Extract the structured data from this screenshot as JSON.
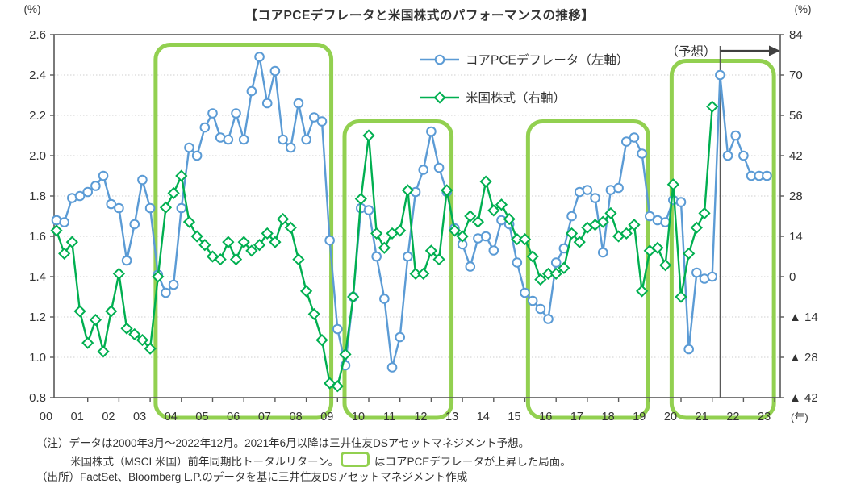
{
  "title": "【コアPCEデフレータと米国株式のパフォーマンスの推移】",
  "legend": [
    {
      "label": "コアPCEデフレータ（左軸）",
      "color": "#5B9BD5",
      "marker": "circle"
    },
    {
      "label": "米国株式（右軸）",
      "color": "#00AF50",
      "marker": "diamond"
    }
  ],
  "forecast_label": "（予想）",
  "left_axis": {
    "unit": "(%)",
    "labels": [
      "2.6",
      "2.4",
      "2.2",
      "2.0",
      "1.8",
      "1.6",
      "1.4",
      "1.2",
      "1.0",
      "0.8"
    ],
    "max": 2.6,
    "min": 0.8
  },
  "right_axis": {
    "unit": "(%)",
    "labels": [
      "84",
      "70",
      "56",
      "42",
      "28",
      "14",
      "0",
      "▲ 14",
      "▲ 28",
      "▲ 42"
    ],
    "max": 84,
    "min": -42
  },
  "x_axis": {
    "labels": [
      "00",
      "01",
      "02",
      "03",
      "04",
      "05",
      "06",
      "07",
      "08",
      "09",
      "10",
      "11",
      "12",
      "13",
      "14",
      "15",
      "16",
      "17",
      "18",
      "19",
      "20",
      "21",
      "22",
      "23"
    ],
    "unit_label": "(年)"
  },
  "chart_data": {
    "type": "line",
    "frequency": "quarterly",
    "start": "2000Q1",
    "end": "2022Q4",
    "series": [
      {
        "name": "コアPCEデフレータ（左軸）",
        "axis": "left",
        "color": "#5B9BD5",
        "marker": "circle",
        "values": [
          1.68,
          1.67,
          1.79,
          1.8,
          1.82,
          1.85,
          1.9,
          1.76,
          1.74,
          1.48,
          1.66,
          1.88,
          1.74,
          1.41,
          1.32,
          1.36,
          1.74,
          2.04,
          2.0,
          2.14,
          2.21,
          2.09,
          2.08,
          2.21,
          2.08,
          2.32,
          2.49,
          2.26,
          2.42,
          2.08,
          2.04,
          2.26,
          2.08,
          2.19,
          2.17,
          1.58,
          1.14,
          0.96,
          1.3,
          1.74,
          1.73,
          1.5,
          1.29,
          0.95,
          1.1,
          1.5,
          1.82,
          1.93,
          2.12,
          1.94,
          1.82,
          1.64,
          1.56,
          1.45,
          1.59,
          1.6,
          1.53,
          1.68,
          1.66,
          1.47,
          1.32,
          1.28,
          1.24,
          1.19,
          1.47,
          1.54,
          1.7,
          1.82,
          1.83,
          1.79,
          1.52,
          1.83,
          1.84,
          2.07,
          2.09,
          2.01,
          1.7,
          1.68,
          1.67,
          1.78,
          1.77,
          1.04,
          1.42,
          1.39,
          1.4,
          2.4,
          2.0,
          2.1,
          2.0,
          1.9,
          1.9,
          1.9
        ]
      },
      {
        "name": "米国株式（右軸）",
        "axis": "right",
        "color": "#00AF50",
        "marker": "diamond",
        "values": [
          16,
          8,
          12,
          -12,
          -23,
          -15,
          -26,
          -12,
          1,
          -18,
          -20,
          -22,
          -25,
          0,
          24,
          29,
          35,
          19,
          14,
          11,
          7,
          6,
          12,
          6,
          12,
          9,
          11,
          15,
          12,
          20,
          17,
          6,
          -5,
          -13,
          -22,
          -37,
          -38,
          -27,
          -7,
          27,
          49,
          15,
          10,
          15,
          16,
          30,
          1,
          1,
          9,
          6,
          30,
          16,
          14,
          21,
          19,
          33,
          23,
          25,
          20,
          13,
          13,
          7,
          -1,
          1,
          1,
          3,
          15,
          12,
          17,
          18,
          19,
          22,
          14,
          15,
          18,
          -5,
          9,
          10,
          4,
          32,
          -7,
          8,
          17,
          22,
          59
        ]
      }
    ],
    "left_ylim": [
      0.8,
      2.6
    ],
    "right_ylim": [
      -42,
      84
    ],
    "grid": true,
    "legend_position": "top-center-inside",
    "forecast_start_quarter_index": 85,
    "highlight_boxes": [
      {
        "q1": 12.7,
        "q2": 35.2,
        "top": 2.55,
        "bottom": 0.7
      },
      {
        "q1": 36.9,
        "q2": 50.6,
        "top": 2.17,
        "bottom": 0.7
      },
      {
        "q1": 60.4,
        "q2": 75.8,
        "top": 2.17,
        "bottom": 0.7
      },
      {
        "q1": 78.8,
        "q2": 91.9,
        "top": 2.47,
        "bottom": 0.7
      }
    ],
    "highlight_color": "#92D050"
  },
  "notes": {
    "line1": "（注）データは2000年3月～2022年12月。2021年6月以降は三井住友DSアセットマネジメント予想。",
    "line2a": "米国株式（MSCI 米国）前年同期比トータルリターン。",
    "line2b": "はコアPCEデフレータが上昇した局面。",
    "line3": "（出所）FactSet、Bloomberg L.P.のデータを基に三井住友DSアセットマネジメント作成"
  }
}
